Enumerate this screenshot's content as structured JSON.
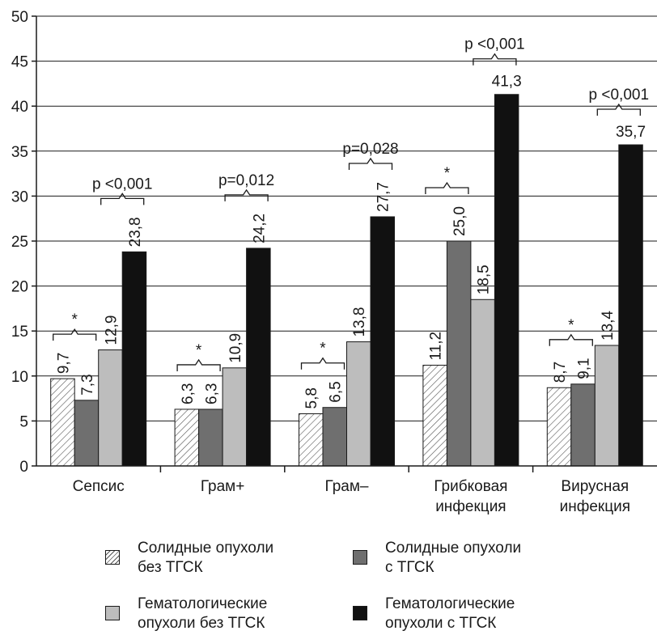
{
  "chart_data": {
    "type": "bar",
    "categories": [
      [
        "Сепсис"
      ],
      [
        "Грам+"
      ],
      [
        "Грам–"
      ],
      [
        "Грибковая",
        "инфекция"
      ],
      [
        "Вирусная",
        "инфекция"
      ]
    ],
    "series": [
      {
        "name": "Солидные опухоли\nбез ТГСК",
        "values": [
          9.7,
          6.3,
          5.8,
          11.2,
          8.7
        ],
        "labels": [
          "9,7",
          "6,3",
          "5,8",
          "11,2",
          "8,7"
        ],
        "fill": "hatch"
      },
      {
        "name": "Солидные опухоли\nс ТГСК",
        "values": [
          7.3,
          6.3,
          6.5,
          25.0,
          9.1
        ],
        "labels": [
          "7,3",
          "6,3",
          "6,5",
          "25,0",
          "9,1"
        ],
        "fill": "#6f6f6f"
      },
      {
        "name": "Гематологические\nопухоли без ТГСК",
        "values": [
          12.9,
          10.9,
          13.8,
          18.5,
          13.4
        ],
        "labels": [
          "12,9",
          "10,9",
          "13,8",
          "18,5",
          "13,4"
        ],
        "fill": "#bdbdbd"
      },
      {
        "name": "Гематологические\nопухоли с ТГСК",
        "values": [
          23.8,
          24.2,
          27.7,
          41.3,
          35.7
        ],
        "labels": [
          "23,8",
          "24,2",
          "27,7",
          "41,3",
          "35,7"
        ],
        "fill": "#111111"
      }
    ],
    "ylim": [
      0,
      50
    ],
    "yticks": [
      0,
      5,
      10,
      15,
      20,
      25,
      30,
      35,
      40,
      45,
      50
    ],
    "grid": true,
    "legend_position": "bottom",
    "annotations": [
      {
        "category": 0,
        "between": [
          0,
          1
        ],
        "text": "*"
      },
      {
        "category": 0,
        "between": [
          2,
          3
        ],
        "text": "p <0,001"
      },
      {
        "category": 1,
        "between": [
          0,
          1
        ],
        "text": "*"
      },
      {
        "category": 1,
        "between": [
          2,
          3
        ],
        "text": "p=0,012"
      },
      {
        "category": 2,
        "between": [
          0,
          1
        ],
        "text": "*"
      },
      {
        "category": 2,
        "between": [
          2,
          3
        ],
        "text": "p=0,028"
      },
      {
        "category": 3,
        "between": [
          0,
          1
        ],
        "text": "*"
      },
      {
        "category": 3,
        "between": [
          2,
          3
        ],
        "text": "p <0,001"
      },
      {
        "category": 4,
        "between": [
          0,
          1
        ],
        "text": "*"
      },
      {
        "category": 4,
        "between": [
          2,
          3
        ],
        "text": "p <0,001"
      }
    ],
    "colors": {
      "axis": "#1a1a1a",
      "grid": "#1a1a1a",
      "hatch_line": "#555555"
    }
  }
}
